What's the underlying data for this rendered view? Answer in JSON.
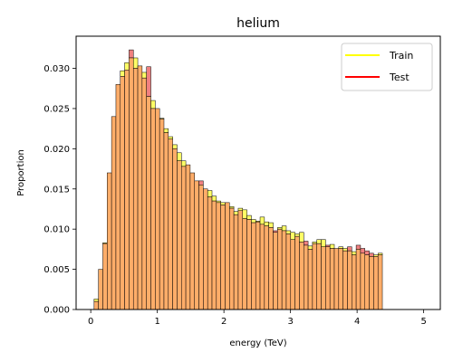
{
  "chart_data": {
    "type": "bar",
    "title": "helium",
    "xlabel": "energy (TeV)",
    "ylabel": "Proportion",
    "xlim": [
      -0.22,
      5.25
    ],
    "ylim": [
      0,
      0.034
    ],
    "xticks": [
      0,
      1,
      2,
      3,
      4,
      5
    ],
    "xtick_labels": [
      "0",
      "1",
      "2",
      "3",
      "4",
      "5"
    ],
    "yticks": [
      0,
      0.005,
      0.01,
      0.015,
      0.02,
      0.025,
      0.03
    ],
    "ytick_labels": [
      "0.000",
      "0.005",
      "0.010",
      "0.015",
      "0.020",
      "0.025",
      "0.030"
    ],
    "grid": false,
    "legend_position": "top-right",
    "bin_start": 0.05,
    "bin_width": 0.0656,
    "series": [
      {
        "name": "Train",
        "fill_color": "#ffff66",
        "legend_color": "#ffff00",
        "values": [
          0.0013,
          0.005,
          0.0083,
          0.017,
          0.024,
          0.028,
          0.0297,
          0.0307,
          0.0313,
          0.0313,
          0.0303,
          0.0295,
          0.0265,
          0.026,
          0.025,
          0.0238,
          0.0225,
          0.0215,
          0.0205,
          0.0195,
          0.0185,
          0.018,
          0.017,
          0.016,
          0.0155,
          0.015,
          0.0148,
          0.0141,
          0.0135,
          0.0133,
          0.0133,
          0.0128,
          0.0122,
          0.0126,
          0.0124,
          0.0117,
          0.0112,
          0.011,
          0.0115,
          0.0109,
          0.0108,
          0.0096,
          0.0102,
          0.0104,
          0.0098,
          0.0096,
          0.0094,
          0.0096,
          0.008,
          0.0079,
          0.0084,
          0.0087,
          0.0087,
          0.0078,
          0.0081,
          0.0076,
          0.0078,
          0.0076,
          0.0073,
          0.0072,
          0.0075,
          0.007,
          0.0068,
          0.0066,
          0.0068,
          0.007
        ]
      },
      {
        "name": "Test",
        "fill_color": "#f08080",
        "legend_color": "#ff0000",
        "values": [
          0.001,
          0.005,
          0.0082,
          0.017,
          0.024,
          0.028,
          0.029,
          0.0298,
          0.0323,
          0.03,
          0.0303,
          0.0288,
          0.0302,
          0.025,
          0.025,
          0.0237,
          0.022,
          0.0212,
          0.02,
          0.0185,
          0.0178,
          0.018,
          0.017,
          0.016,
          0.016,
          0.015,
          0.014,
          0.0135,
          0.0133,
          0.013,
          0.0133,
          0.0126,
          0.0118,
          0.0123,
          0.0113,
          0.0112,
          0.0108,
          0.0109,
          0.0106,
          0.0104,
          0.0102,
          0.0098,
          0.01,
          0.0098,
          0.0094,
          0.0087,
          0.0091,
          0.0084,
          0.0085,
          0.0075,
          0.0082,
          0.0082,
          0.0078,
          0.008,
          0.0076,
          0.0076,
          0.0076,
          0.0073,
          0.0078,
          0.0068,
          0.008,
          0.0076,
          0.0073,
          0.007,
          0.0066,
          0.0068
        ]
      }
    ],
    "overlap_color": "#ffad69"
  }
}
